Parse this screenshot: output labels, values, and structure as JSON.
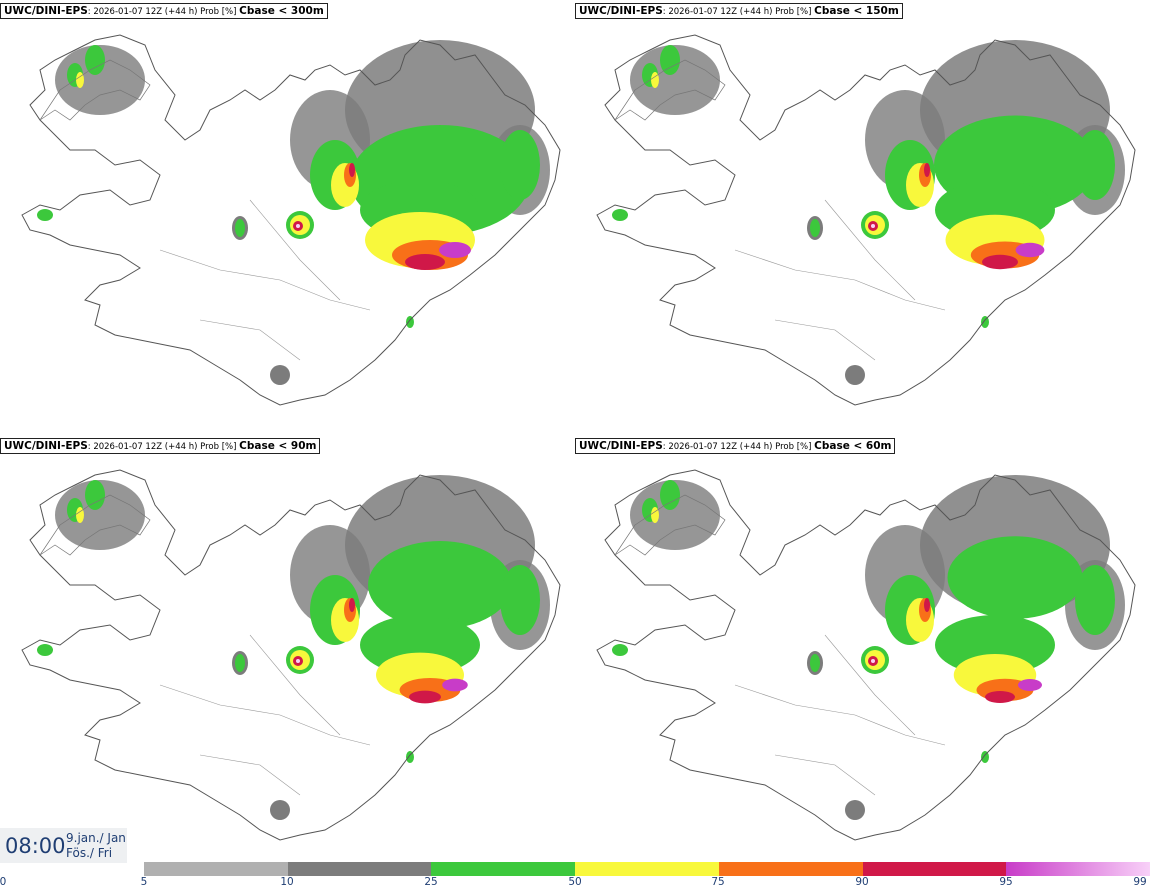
{
  "panels": [
    {
      "model": "UWC/DINI-EPS",
      "meta": ": 2026-01-07 12Z (+44 h) Prob [%] ",
      "variable": "Cbase < 300m"
    },
    {
      "model": "UWC/DINI-EPS",
      "meta": ": 2026-01-07 12Z (+44 h) Prob [%] ",
      "variable": "Cbase < 150m"
    },
    {
      "model": "UWC/DINI-EPS",
      "meta": ": 2026-01-07 12Z (+44 h) Prob [%] ",
      "variable": "Cbase < 90m"
    },
    {
      "model": "UWC/DINI-EPS",
      "meta": ": 2026-01-07 12Z (+44 h) Prob [%] ",
      "variable": "Cbase < 60m"
    }
  ],
  "valid_time": {
    "time": "08:00",
    "date_line1": "9.jan./ Jan",
    "date_line2": "Fös./ Fri"
  },
  "legend": {
    "colors": [
      "#b0b0b0",
      "#7c7c7c",
      "#3cc83c",
      "#f8f83c",
      "#f87018",
      "#d01848",
      "#c83cc8"
    ],
    "gradient_end": "#f8d0f8",
    "ticks": [
      "0",
      "5",
      "10",
      "25",
      "50",
      "75",
      "90",
      "95",
      "99"
    ]
  }
}
